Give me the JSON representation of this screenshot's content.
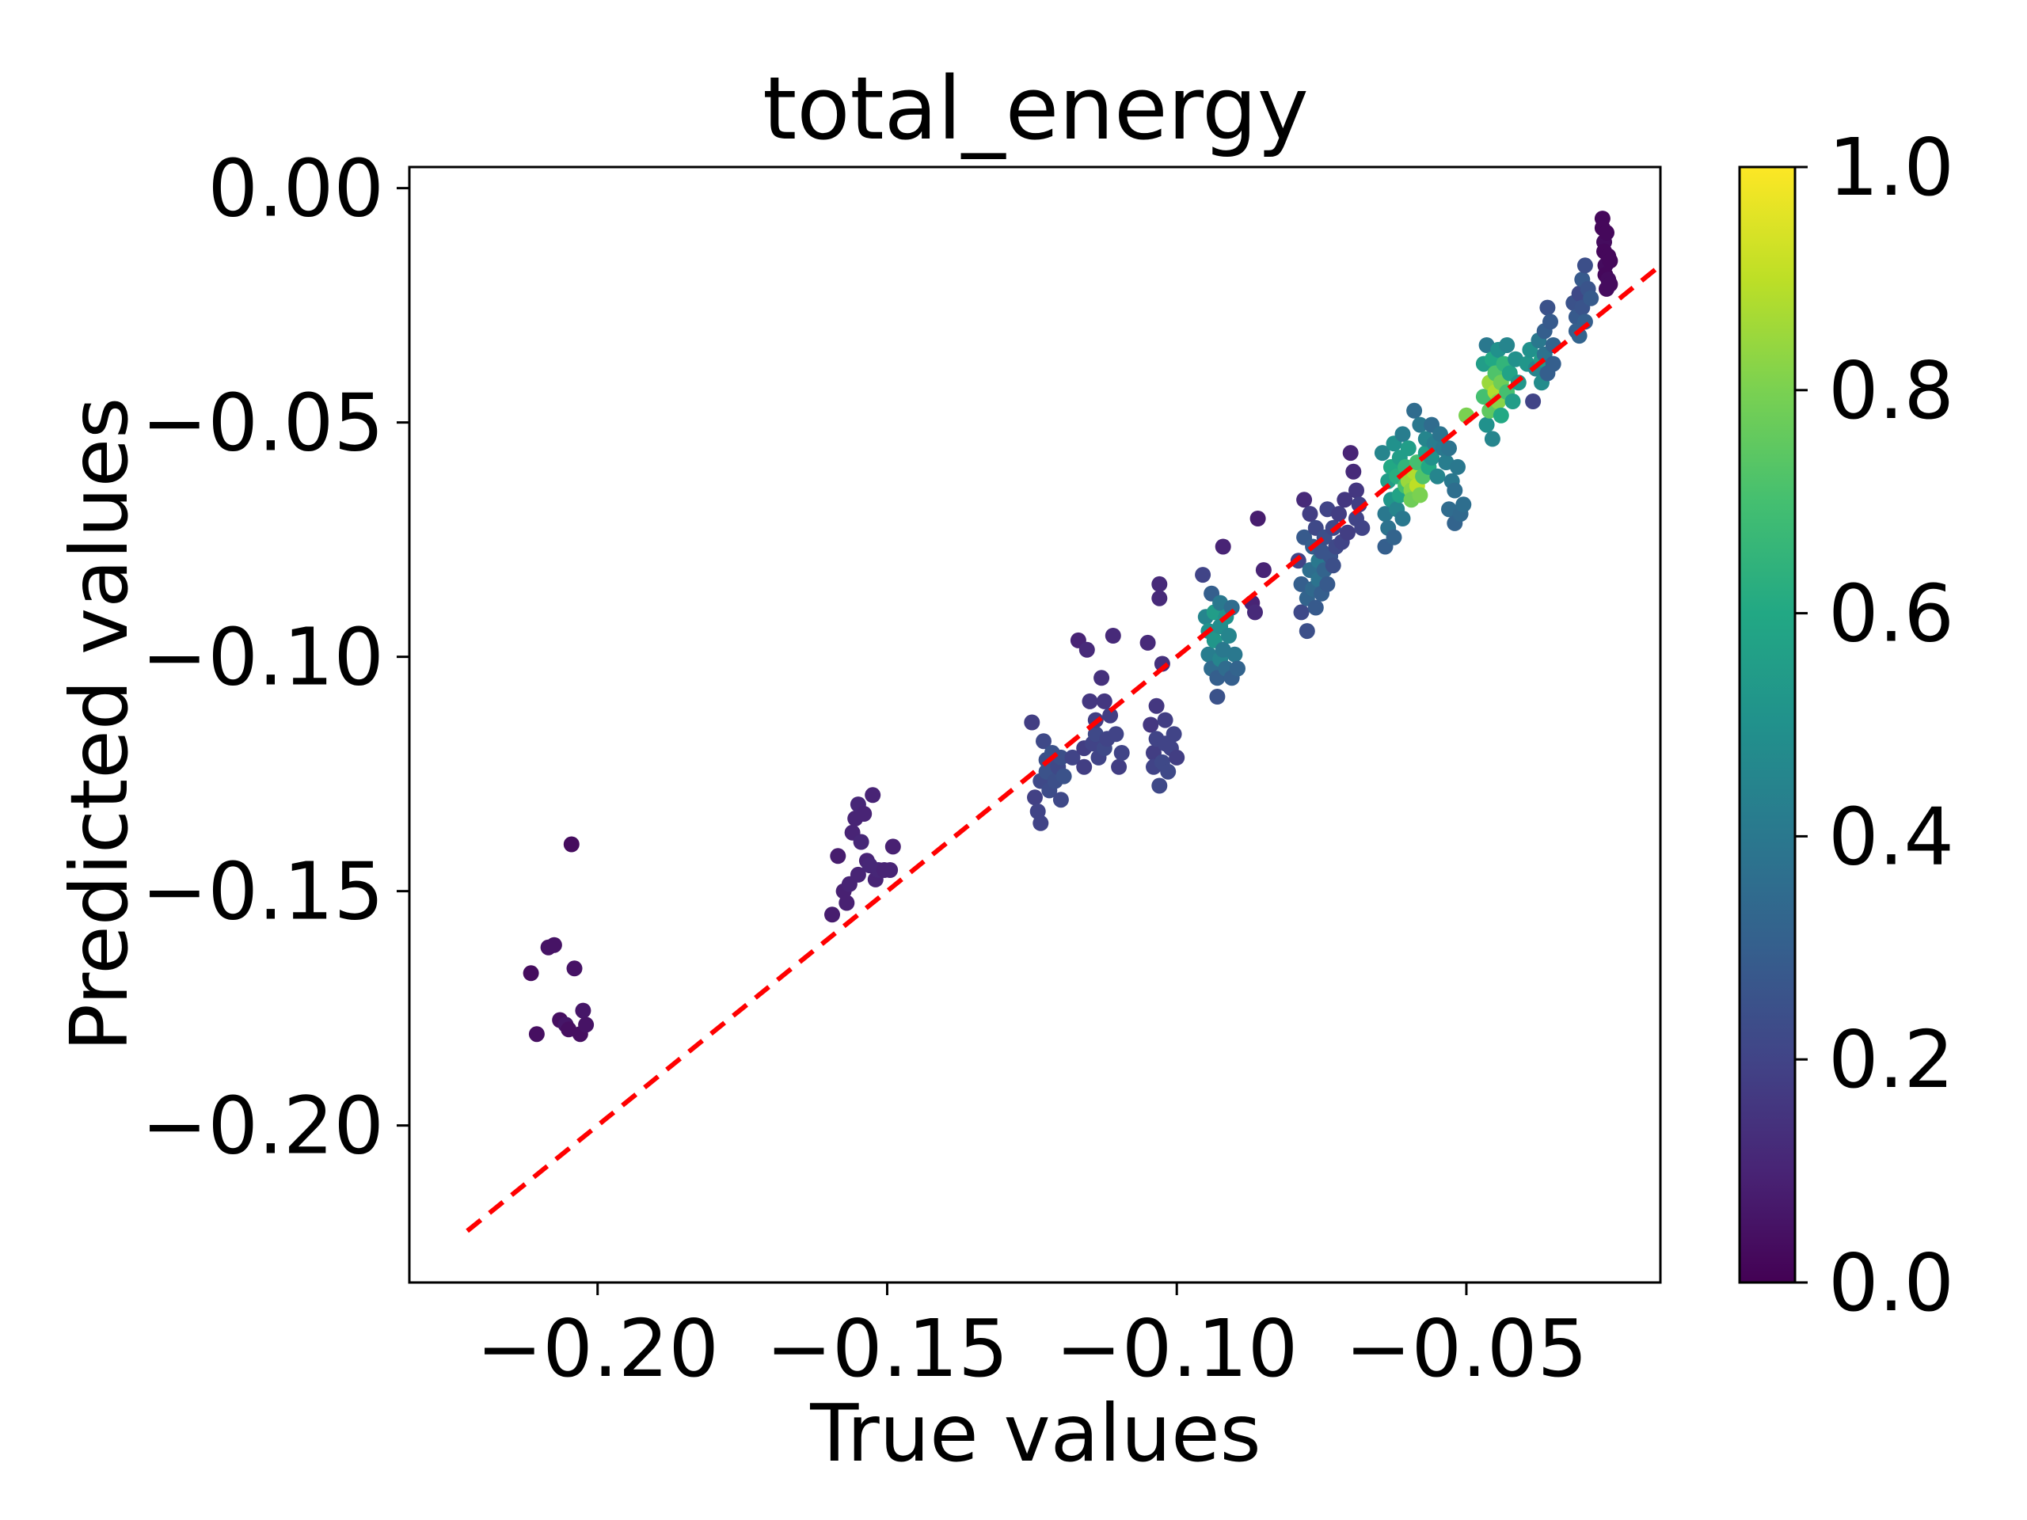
{
  "chart_data": {
    "type": "scatter",
    "title": "total_energy",
    "xlabel": "True values",
    "ylabel": "Predicted values",
    "xlim": [
      -0.2325,
      -0.0165
    ],
    "ylim": [
      -0.2335,
      0.0045
    ],
    "x_ticks": [
      -0.2,
      -0.15,
      -0.1,
      -0.05
    ],
    "x_tick_labels": [
      "−0.20",
      "−0.15",
      "−0.10",
      "−0.05"
    ],
    "y_ticks": [
      0.0,
      -0.05,
      -0.1,
      -0.15,
      -0.2
    ],
    "y_tick_labels": [
      "0.00",
      "−0.05",
      "−0.10",
      "−0.15",
      "−0.20"
    ],
    "grid": false,
    "colorbar": {
      "colormap": "viridis",
      "range": [
        0.0,
        1.0
      ],
      "ticks": [
        0.0,
        0.2,
        0.4,
        0.6,
        0.8,
        1.0
      ],
      "tick_labels": [
        "0.0",
        "0.2",
        "0.4",
        "0.6",
        "0.8",
        "1.0"
      ]
    },
    "reference_line": {
      "color": "#ff0000",
      "style": "dashed",
      "points": [
        [
          -0.2225,
          -0.2225
        ],
        [
          -0.0165,
          -0.0165
        ]
      ]
    },
    "point_color_note": "c in [0,1] mapped through viridis",
    "points": [
      [
        -0.2115,
        -0.1675,
        0.03
      ],
      [
        -0.2105,
        -0.1805,
        0.04
      ],
      [
        -0.2085,
        -0.162,
        0.05
      ],
      [
        -0.2075,
        -0.1615,
        0.05
      ],
      [
        -0.2065,
        -0.1775,
        0.04
      ],
      [
        -0.2055,
        -0.1785,
        0.06
      ],
      [
        -0.205,
        -0.1795,
        0.04
      ],
      [
        -0.2045,
        -0.14,
        0.03
      ],
      [
        -0.204,
        -0.1665,
        0.05
      ],
      [
        -0.203,
        -0.1805,
        0.04
      ],
      [
        -0.2025,
        -0.1755,
        0.06
      ],
      [
        -0.202,
        -0.1785,
        0.05
      ],
      [
        -0.1595,
        -0.155,
        0.08
      ],
      [
        -0.1585,
        -0.1425,
        0.08
      ],
      [
        -0.1575,
        -0.15,
        0.09
      ],
      [
        -0.157,
        -0.1525,
        0.09
      ],
      [
        -0.1565,
        -0.1485,
        0.1
      ],
      [
        -0.156,
        -0.1375,
        0.1
      ],
      [
        -0.1555,
        -0.1345,
        0.1
      ],
      [
        -0.155,
        -0.1315,
        0.11
      ],
      [
        -0.155,
        -0.1465,
        0.1
      ],
      [
        -0.1545,
        -0.1395,
        0.11
      ],
      [
        -0.154,
        -0.1335,
        0.1
      ],
      [
        -0.1535,
        -0.1435,
        0.1
      ],
      [
        -0.153,
        -0.1445,
        0.11
      ],
      [
        -0.1525,
        -0.1295,
        0.1
      ],
      [
        -0.152,
        -0.1475,
        0.1
      ],
      [
        -0.1515,
        -0.1455,
        0.11
      ],
      [
        -0.1505,
        -0.1455,
        0.1
      ],
      [
        -0.1495,
        -0.1455,
        0.1
      ],
      [
        -0.149,
        -0.1405,
        0.09
      ],
      [
        -0.125,
        -0.114,
        0.18
      ],
      [
        -0.1245,
        -0.13,
        0.19
      ],
      [
        -0.124,
        -0.133,
        0.2
      ],
      [
        -0.1235,
        -0.1355,
        0.2
      ],
      [
        -0.1235,
        -0.1265,
        0.22
      ],
      [
        -0.123,
        -0.118,
        0.22
      ],
      [
        -0.1225,
        -0.122,
        0.24
      ],
      [
        -0.1225,
        -0.1245,
        0.25
      ],
      [
        -0.122,
        -0.1285,
        0.23
      ],
      [
        -0.1215,
        -0.1205,
        0.25
      ],
      [
        -0.121,
        -0.1265,
        0.24
      ],
      [
        -0.1205,
        -0.1235,
        0.22
      ],
      [
        -0.12,
        -0.1305,
        0.22
      ],
      [
        -0.12,
        -0.1215,
        0.24
      ],
      [
        -0.1195,
        -0.1255,
        0.25
      ],
      [
        -0.118,
        -0.1215,
        0.2
      ],
      [
        -0.117,
        -0.0965,
        0.1
      ],
      [
        -0.116,
        -0.1195,
        0.18
      ],
      [
        -0.116,
        -0.1235,
        0.18
      ],
      [
        -0.1155,
        -0.0985,
        0.12
      ],
      [
        -0.115,
        -0.1095,
        0.16
      ],
      [
        -0.1145,
        -0.1185,
        0.2
      ],
      [
        -0.114,
        -0.1165,
        0.22
      ],
      [
        -0.114,
        -0.1135,
        0.18
      ],
      [
        -0.1135,
        -0.1215,
        0.2
      ],
      [
        -0.113,
        -0.1045,
        0.14
      ],
      [
        -0.1125,
        -0.1095,
        0.16
      ],
      [
        -0.1125,
        -0.1195,
        0.22
      ],
      [
        -0.112,
        -0.1175,
        0.2
      ],
      [
        -0.1115,
        -0.1125,
        0.18
      ],
      [
        -0.111,
        -0.0955,
        0.12
      ],
      [
        -0.1105,
        -0.1165,
        0.2
      ],
      [
        -0.11,
        -0.1235,
        0.18
      ],
      [
        -0.1095,
        -0.1205,
        0.2
      ],
      [
        -0.105,
        -0.097,
        0.12
      ],
      [
        -0.1045,
        -0.1145,
        0.16
      ],
      [
        -0.104,
        -0.1205,
        0.18
      ],
      [
        -0.104,
        -0.1235,
        0.2
      ],
      [
        -0.1035,
        -0.1105,
        0.16
      ],
      [
        -0.1035,
        -0.1175,
        0.2
      ],
      [
        -0.103,
        -0.0845,
        0.12
      ],
      [
        -0.103,
        -0.0875,
        0.12
      ],
      [
        -0.103,
        -0.1275,
        0.22
      ],
      [
        -0.1025,
        -0.1015,
        0.14
      ],
      [
        -0.1025,
        -0.1225,
        0.22
      ],
      [
        -0.102,
        -0.1185,
        0.2
      ],
      [
        -0.102,
        -0.1135,
        0.18
      ],
      [
        -0.1015,
        -0.1245,
        0.22
      ],
      [
        -0.101,
        -0.1195,
        0.2
      ],
      [
        -0.1005,
        -0.1165,
        0.2
      ],
      [
        -0.1,
        -0.1215,
        0.18
      ],
      [
        -0.0955,
        -0.0825,
        0.2
      ],
      [
        -0.095,
        -0.0915,
        0.45
      ],
      [
        -0.0945,
        -0.0945,
        0.5
      ],
      [
        -0.0945,
        -0.0995,
        0.42
      ],
      [
        -0.094,
        -0.0865,
        0.3
      ],
      [
        -0.094,
        -0.1025,
        0.35
      ],
      [
        -0.0935,
        -0.0905,
        0.55
      ],
      [
        -0.0935,
        -0.0965,
        0.52
      ],
      [
        -0.093,
        -0.1045,
        0.3
      ],
      [
        -0.093,
        -0.1085,
        0.25
      ],
      [
        -0.0925,
        -0.0885,
        0.4
      ],
      [
        -0.0925,
        -0.0935,
        0.48
      ],
      [
        -0.0925,
        -0.1005,
        0.45
      ],
      [
        -0.092,
        -0.0765,
        0.1
      ],
      [
        -0.092,
        -0.0985,
        0.4
      ],
      [
        -0.0915,
        -0.1025,
        0.35
      ],
      [
        -0.0915,
        -0.0915,
        0.5
      ],
      [
        -0.091,
        -0.0955,
        0.45
      ],
      [
        -0.0905,
        -0.0895,
        0.35
      ],
      [
        -0.0905,
        -0.1045,
        0.3
      ],
      [
        -0.09,
        -0.0995,
        0.4
      ],
      [
        -0.0895,
        -0.1025,
        0.32
      ],
      [
        -0.087,
        -0.0885,
        0.1
      ],
      [
        -0.0865,
        -0.0905,
        0.12
      ],
      [
        -0.086,
        -0.0705,
        0.08
      ],
      [
        -0.085,
        -0.0815,
        0.1
      ],
      [
        -0.079,
        -0.0795,
        0.2
      ],
      [
        -0.0785,
        -0.0845,
        0.3
      ],
      [
        -0.0785,
        -0.0905,
        0.22
      ],
      [
        -0.078,
        -0.0665,
        0.12
      ],
      [
        -0.078,
        -0.0745,
        0.28
      ],
      [
        -0.0775,
        -0.0875,
        0.32
      ],
      [
        -0.0775,
        -0.0945,
        0.24
      ],
      [
        -0.077,
        -0.0695,
        0.18
      ],
      [
        -0.077,
        -0.0815,
        0.36
      ],
      [
        -0.0765,
        -0.0765,
        0.3
      ],
      [
        -0.0765,
        -0.0855,
        0.34
      ],
      [
        -0.076,
        -0.0895,
        0.28
      ],
      [
        -0.076,
        -0.0725,
        0.22
      ],
      [
        -0.0755,
        -0.0795,
        0.4
      ],
      [
        -0.0755,
        -0.0835,
        0.38
      ],
      [
        -0.075,
        -0.0865,
        0.3
      ],
      [
        -0.075,
        -0.0775,
        0.26
      ],
      [
        -0.0745,
        -0.0815,
        0.32
      ],
      [
        -0.0745,
        -0.0745,
        0.24
      ],
      [
        -0.074,
        -0.0845,
        0.28
      ],
      [
        -0.074,
        -0.0685,
        0.2
      ],
      [
        -0.0735,
        -0.0785,
        0.26
      ],
      [
        -0.073,
        -0.0805,
        0.24
      ],
      [
        -0.073,
        -0.0725,
        0.22
      ],
      [
        -0.0725,
        -0.0765,
        0.22
      ],
      [
        -0.072,
        -0.0695,
        0.18
      ],
      [
        -0.0715,
        -0.0755,
        0.2
      ],
      [
        -0.071,
        -0.0665,
        0.16
      ],
      [
        -0.0705,
        -0.0735,
        0.18
      ],
      [
        -0.07,
        -0.0565,
        0.1
      ],
      [
        -0.0695,
        -0.0605,
        0.12
      ],
      [
        -0.069,
        -0.0645,
        0.16
      ],
      [
        -0.069,
        -0.0705,
        0.2
      ],
      [
        -0.0685,
        -0.0675,
        0.18
      ],
      [
        -0.068,
        -0.0725,
        0.2
      ],
      [
        -0.0645,
        -0.0565,
        0.45
      ],
      [
        -0.064,
        -0.0695,
        0.4
      ],
      [
        -0.064,
        -0.0765,
        0.3
      ],
      [
        -0.0635,
        -0.0625,
        0.55
      ],
      [
        -0.0635,
        -0.0725,
        0.38
      ],
      [
        -0.063,
        -0.0595,
        0.6
      ],
      [
        -0.063,
        -0.0665,
        0.52
      ],
      [
        -0.0625,
        -0.0545,
        0.5
      ],
      [
        -0.0625,
        -0.0745,
        0.32
      ],
      [
        -0.062,
        -0.0615,
        0.62
      ],
      [
        -0.062,
        -0.0685,
        0.45
      ],
      [
        -0.0615,
        -0.0575,
        0.55
      ],
      [
        -0.0615,
        -0.0655,
        0.58
      ],
      [
        -0.061,
        -0.0525,
        0.42
      ],
      [
        -0.061,
        -0.0705,
        0.4
      ],
      [
        -0.0605,
        -0.0595,
        0.65
      ],
      [
        -0.0605,
        -0.0635,
        0.7
      ],
      [
        -0.06,
        -0.0625,
        0.85
      ],
      [
        -0.06,
        -0.0555,
        0.55
      ],
      [
        -0.0595,
        -0.0645,
        0.82
      ],
      [
        -0.0595,
        -0.0665,
        0.78
      ],
      [
        -0.059,
        -0.0605,
        0.88
      ],
      [
        -0.059,
        -0.0475,
        0.35
      ],
      [
        -0.0585,
        -0.0635,
        0.9
      ],
      [
        -0.0585,
        -0.0585,
        0.7
      ],
      [
        -0.058,
        -0.0655,
        0.8
      ],
      [
        -0.058,
        -0.0505,
        0.4
      ],
      [
        -0.0575,
        -0.0615,
        0.72
      ],
      [
        -0.057,
        -0.0565,
        0.55
      ],
      [
        -0.057,
        -0.0535,
        0.45
      ],
      [
        -0.0565,
        -0.0595,
        0.6
      ],
      [
        -0.056,
        -0.0505,
        0.35
      ],
      [
        -0.056,
        -0.0575,
        0.5
      ],
      [
        -0.0555,
        -0.0545,
        0.42
      ],
      [
        -0.055,
        -0.0615,
        0.45
      ],
      [
        -0.0545,
        -0.0525,
        0.38
      ],
      [
        -0.054,
        -0.0555,
        0.4
      ],
      [
        -0.0535,
        -0.0585,
        0.42
      ],
      [
        -0.053,
        -0.0555,
        0.38
      ],
      [
        -0.053,
        -0.0685,
        0.35
      ],
      [
        -0.0525,
        -0.0625,
        0.4
      ],
      [
        -0.052,
        -0.0715,
        0.32
      ],
      [
        -0.052,
        -0.0645,
        0.36
      ],
      [
        -0.0515,
        -0.0595,
        0.4
      ],
      [
        -0.051,
        -0.0695,
        0.34
      ],
      [
        -0.0505,
        -0.0675,
        0.36
      ],
      [
        -0.05,
        -0.0485,
        0.8
      ],
      [
        -0.047,
        -0.0375,
        0.55
      ],
      [
        -0.047,
        -0.0445,
        0.7
      ],
      [
        -0.0465,
        -0.0335,
        0.4
      ],
      [
        -0.0465,
        -0.0505,
        0.5
      ],
      [
        -0.046,
        -0.0415,
        0.85
      ],
      [
        -0.046,
        -0.0475,
        0.75
      ],
      [
        -0.0455,
        -0.0365,
        0.6
      ],
      [
        -0.0455,
        -0.0535,
        0.45
      ],
      [
        -0.045,
        -0.0435,
        0.88
      ],
      [
        -0.045,
        -0.0395,
        0.72
      ],
      [
        -0.0445,
        -0.0455,
        0.82
      ],
      [
        -0.0445,
        -0.0345,
        0.5
      ],
      [
        -0.044,
        -0.0415,
        0.78
      ],
      [
        -0.044,
        -0.0485,
        0.6
      ],
      [
        -0.0435,
        -0.0375,
        0.65
      ],
      [
        -0.043,
        -0.0435,
        0.7
      ],
      [
        -0.043,
        -0.0335,
        0.45
      ],
      [
        -0.0425,
        -0.0395,
        0.58
      ],
      [
        -0.042,
        -0.0455,
        0.55
      ],
      [
        -0.0415,
        -0.0365,
        0.5
      ],
      [
        -0.041,
        -0.0415,
        0.52
      ],
      [
        -0.0395,
        -0.0375,
        0.52
      ],
      [
        -0.039,
        -0.0345,
        0.5
      ],
      [
        -0.0385,
        -0.0455,
        0.2
      ],
      [
        -0.038,
        -0.0385,
        0.45
      ],
      [
        -0.0375,
        -0.0325,
        0.4
      ],
      [
        -0.037,
        -0.0365,
        0.55
      ],
      [
        -0.037,
        -0.0415,
        0.48
      ],
      [
        -0.0365,
        -0.0305,
        0.3
      ],
      [
        -0.0365,
        -0.0355,
        0.38
      ],
      [
        -0.036,
        -0.0255,
        0.25
      ],
      [
        -0.036,
        -0.0395,
        0.3
      ],
      [
        -0.0355,
        -0.0285,
        0.28
      ],
      [
        -0.035,
        -0.0335,
        0.32
      ],
      [
        -0.035,
        -0.0375,
        0.3
      ],
      [
        -0.0315,
        -0.0245,
        0.25
      ],
      [
        -0.031,
        -0.0275,
        0.28
      ],
      [
        -0.031,
        -0.0305,
        0.3
      ],
      [
        -0.0305,
        -0.0225,
        0.22
      ],
      [
        -0.0305,
        -0.0315,
        0.32
      ],
      [
        -0.03,
        -0.0195,
        0.28
      ],
      [
        -0.03,
        -0.0255,
        0.26
      ],
      [
        -0.0295,
        -0.0165,
        0.24
      ],
      [
        -0.0295,
        -0.0285,
        0.3
      ],
      [
        -0.029,
        -0.0215,
        0.26
      ],
      [
        -0.0285,
        -0.0235,
        0.28
      ],
      [
        -0.0265,
        -0.0065,
        0.02
      ],
      [
        -0.0265,
        -0.0085,
        0.02
      ],
      [
        -0.0262,
        -0.0115,
        0.03
      ],
      [
        -0.0262,
        -0.0135,
        0.02
      ],
      [
        -0.026,
        -0.0165,
        0.03
      ],
      [
        -0.026,
        -0.0185,
        0.02
      ],
      [
        -0.0258,
        -0.0215,
        0.03
      ],
      [
        -0.0258,
        -0.0095,
        0.02
      ],
      [
        -0.0255,
        -0.0145,
        0.02
      ],
      [
        -0.0255,
        -0.0195,
        0.03
      ],
      [
        -0.0252,
        -0.0155,
        0.02
      ],
      [
        -0.0252,
        -0.0205,
        0.03
      ]
    ]
  }
}
